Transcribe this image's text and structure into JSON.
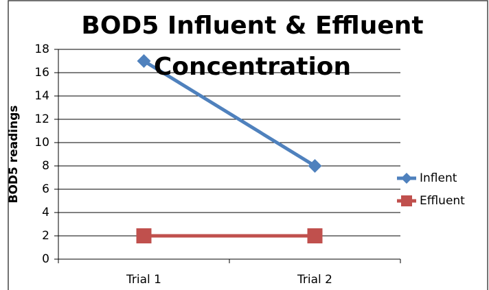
{
  "chart_data": {
    "type": "line",
    "title": "BOD5 Influent & Effluent Concentration",
    "y_label": "BOD5 readings",
    "categories": [
      "Trial 1",
      "Trial 2"
    ],
    "series": [
      {
        "name": "Inflent",
        "color": "#4f81bd",
        "marker": "diamond",
        "values": [
          17,
          8
        ]
      },
      {
        "name": "Effluent",
        "color": "#c0504d",
        "marker": "square",
        "values": [
          2,
          2
        ]
      }
    ],
    "ylim": [
      0,
      18
    ],
    "yticks": [
      0,
      2,
      4,
      6,
      8,
      10,
      12,
      14,
      16,
      18
    ],
    "grid": true,
    "legend": "right"
  }
}
